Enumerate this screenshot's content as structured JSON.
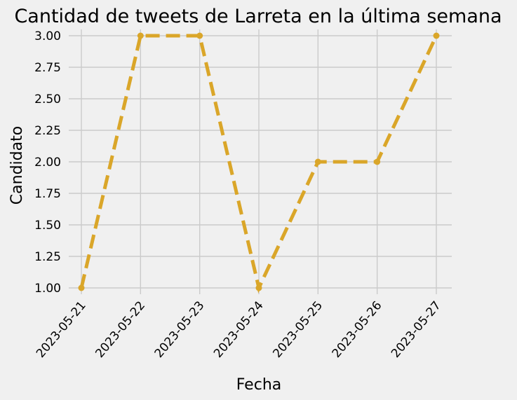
{
  "chart_data": {
    "type": "line",
    "title": "Cantidad de tweets de Larreta en la última semana",
    "xlabel": "Fecha",
    "ylabel": "Candidato",
    "x": [
      "2023-05-21",
      "2023-05-22",
      "2023-05-23",
      "2023-05-24",
      "2023-05-25",
      "2023-05-26",
      "2023-05-27"
    ],
    "y": [
      1,
      3,
      3,
      1,
      2,
      2,
      3
    ],
    "ylim": [
      0.95,
      3.05
    ],
    "yticks": [
      "1.00",
      "1.25",
      "1.50",
      "1.75",
      "2.00",
      "2.25",
      "2.50",
      "2.75",
      "3.00"
    ],
    "grid": true,
    "line_style": "dashed",
    "marker": "circle",
    "color": "#daa629",
    "background": "#f0f0f0"
  }
}
